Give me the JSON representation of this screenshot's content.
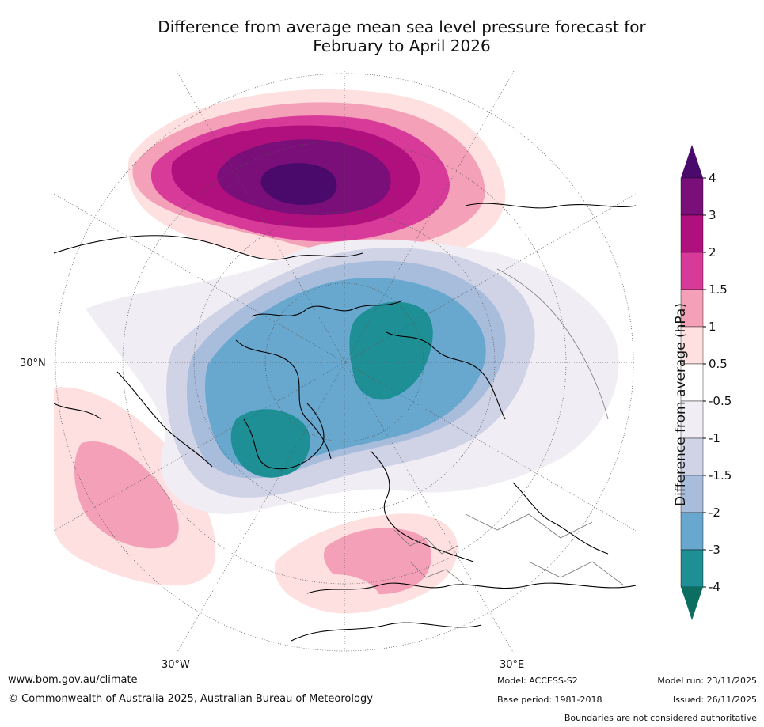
{
  "title_line1": "Difference from average mean sea level pressure forecast for",
  "title_line2": "February to April 2026",
  "lat_label": "30°N",
  "lon_labels": {
    "west": "30°W",
    "east": "30°E"
  },
  "colorbar": {
    "title": "Difference from average (hPa)",
    "ticks": [
      "4",
      "3",
      "2",
      "1.5",
      "1",
      "0.5",
      "-0.5",
      "-1",
      "-1.5",
      "-2",
      "-3",
      "-4"
    ],
    "colors": {
      "gt4": "#4a0a6b",
      "c3_4": "#7a0f7a",
      "c2_3": "#b0107e",
      "c15_2": "#d73a98",
      "c1_15": "#f4a0b8",
      "c05_1": "#fde0df",
      "neutral": "#ffffff",
      "n05_1": "#f0eef4",
      "n1_15": "#d0d2e6",
      "n15_2": "#a8bcdc",
      "n2_3": "#68a8cf",
      "n3_4": "#1e9095",
      "lt4": "#0b6e60"
    }
  },
  "footer": {
    "url": "www.bom.gov.au/climate",
    "copyright": "© Commonwealth of Australia 2025, Australian Bureau of Meteorology",
    "model": "Model: ACCESS-S2",
    "base_period": "Base period: 1981-2018",
    "model_run": "Model run: 23/11/2025",
    "issued": "Issued: 26/11/2025",
    "disclaimer": "Boundaries are not considered authoritative"
  }
}
